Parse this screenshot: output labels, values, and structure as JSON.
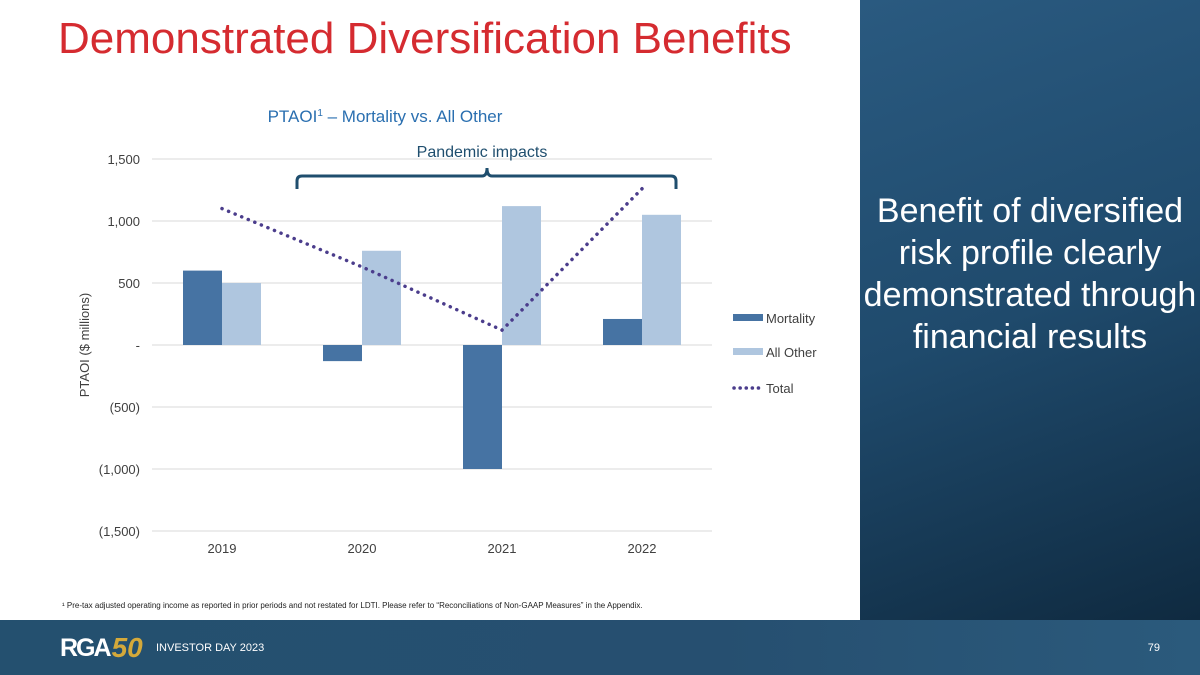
{
  "slide": {
    "title": "Demonstrated Diversification Benefits",
    "side_text": "Benefit of diversified risk profile clearly demonstrated through financial results",
    "footnote": "¹ Pre-tax adjusted operating income as reported in prior periods and not restated for LDTI. Please refer to “Reconciliations of Non-GAAP Measures” in the Appendix.",
    "footer": {
      "logo_text": "RGA50",
      "event": "INVESTOR DAY 2023",
      "page": "79"
    }
  },
  "chart_data": {
    "type": "bar",
    "title": "PTAOI",
    "title_sup": "1",
    "title_rest": " – Mortality vs. All Other",
    "ylabel": "PTAOI ($ millions)",
    "ylim": [
      -1500,
      1500
    ],
    "yticks": [
      1500,
      1000,
      500,
      0,
      -500,
      -1000,
      -1500
    ],
    "ytick_labels": [
      "1,500",
      "1,000",
      "500",
      "-",
      "(500)",
      "(1,000)",
      "(1,500)"
    ],
    "grid": true,
    "legend_position": "right",
    "categories": [
      "2019",
      "2020",
      "2021",
      "2022"
    ],
    "series": [
      {
        "name": "Mortality",
        "type": "bar",
        "color": "#4673a3",
        "values": [
          600,
          -130,
          -1000,
          210
        ]
      },
      {
        "name": "All Other",
        "type": "bar",
        "color": "#afc6df",
        "values": [
          500,
          760,
          1120,
          1050
        ]
      },
      {
        "name": "Total",
        "type": "line-dotted",
        "color": "#4b3d8c",
        "values": [
          1100,
          630,
          120,
          1260
        ]
      }
    ],
    "annotation": {
      "text": "Pandemic impacts",
      "span": [
        "2020",
        "2022"
      ]
    }
  }
}
